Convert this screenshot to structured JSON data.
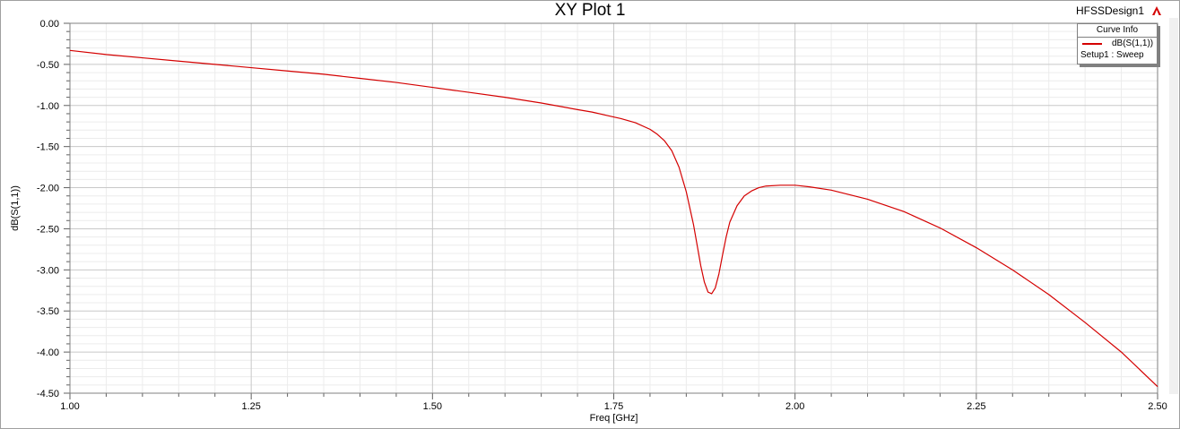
{
  "window": {
    "design_name": "HFSSDesign1",
    "design_icon": "ansys-logo-icon"
  },
  "chart_data": {
    "type": "line",
    "title": "XY Plot 1",
    "xlabel": "Freq [GHz]",
    "ylabel": "dB(S(1,1))",
    "xlim": [
      1.0,
      2.5
    ],
    "ylim": [
      -4.5,
      0.0
    ],
    "x_ticks": [
      "1.00",
      "1.25",
      "1.50",
      "1.75",
      "2.00",
      "2.25",
      "2.50"
    ],
    "y_ticks": [
      "0.00",
      "-0.50",
      "-1.00",
      "-1.50",
      "-2.00",
      "-2.50",
      "-3.00",
      "-3.50",
      "-4.00",
      "-4.50"
    ],
    "grid": true,
    "legend_position": "top-right",
    "legend": {
      "header": "Curve Info",
      "entry": "dB(S(1,1))",
      "subtitle": "Setup1 : Sweep"
    },
    "series": [
      {
        "name": "dB(S(1,1))",
        "color": "#d40000",
        "x": [
          1.0,
          1.05,
          1.1,
          1.15,
          1.2,
          1.25,
          1.3,
          1.35,
          1.4,
          1.45,
          1.5,
          1.55,
          1.6,
          1.65,
          1.7,
          1.72,
          1.74,
          1.76,
          1.78,
          1.8,
          1.81,
          1.82,
          1.83,
          1.84,
          1.85,
          1.86,
          1.865,
          1.87,
          1.875,
          1.88,
          1.885,
          1.89,
          1.895,
          1.9,
          1.905,
          1.91,
          1.92,
          1.93,
          1.94,
          1.95,
          1.96,
          1.98,
          2.0,
          2.02,
          2.05,
          2.1,
          2.15,
          2.2,
          2.25,
          2.3,
          2.35,
          2.4,
          2.45,
          2.5
        ],
        "values": [
          -0.33,
          -0.38,
          -0.42,
          -0.46,
          -0.5,
          -0.54,
          -0.58,
          -0.62,
          -0.67,
          -0.72,
          -0.78,
          -0.84,
          -0.9,
          -0.97,
          -1.05,
          -1.08,
          -1.12,
          -1.16,
          -1.21,
          -1.29,
          -1.35,
          -1.43,
          -1.55,
          -1.75,
          -2.05,
          -2.45,
          -2.7,
          -2.95,
          -3.15,
          -3.27,
          -3.29,
          -3.22,
          -3.05,
          -2.82,
          -2.6,
          -2.42,
          -2.22,
          -2.1,
          -2.04,
          -2.0,
          -1.98,
          -1.97,
          -1.97,
          -1.99,
          -2.03,
          -2.14,
          -2.29,
          -2.49,
          -2.73,
          -3.0,
          -3.3,
          -3.64,
          -4.0,
          -4.42
        ]
      }
    ]
  }
}
